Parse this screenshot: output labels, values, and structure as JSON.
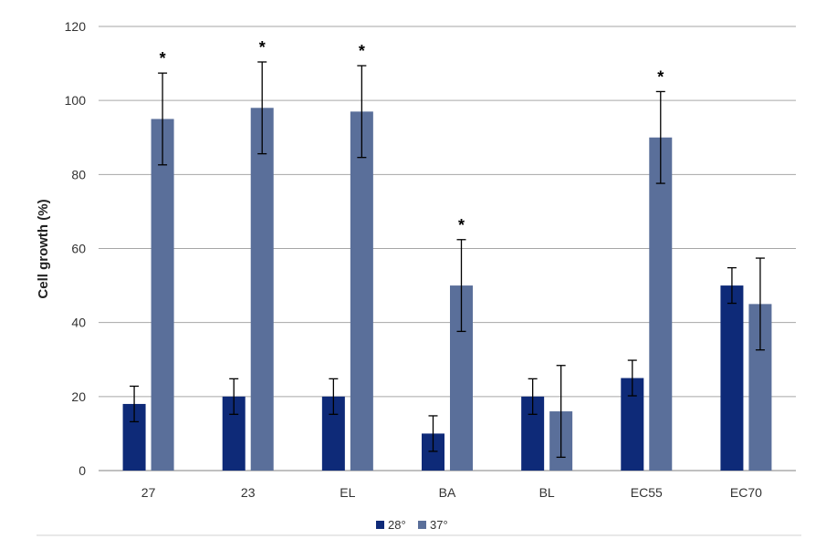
{
  "chart_data": {
    "type": "bar",
    "title": "",
    "xlabel": "",
    "ylabel": "Cell growth (%)",
    "ylim": [
      0,
      120
    ],
    "yticks": [
      0,
      20,
      40,
      60,
      80,
      100,
      120
    ],
    "grid": true,
    "legend_position": "bottom",
    "categories": [
      "27",
      "23",
      "EL",
      "BA",
      "BL",
      "EC55",
      "EC70"
    ],
    "series": [
      {
        "name": "28°",
        "color": "#0e2a78",
        "values": [
          18,
          20,
          20,
          10,
          20,
          25,
          50
        ],
        "errors": [
          4.8,
          4.8,
          4.8,
          4.8,
          4.8,
          4.8,
          4.8
        ]
      },
      {
        "name": "37°",
        "color": "#5a6f9a",
        "values": [
          95,
          98,
          97,
          50,
          16,
          90,
          45
        ],
        "errors": [
          12.4,
          12.4,
          12.4,
          12.4,
          12.4,
          12.4,
          12.4
        ]
      }
    ],
    "annotations": [
      {
        "text": "*",
        "category": "27",
        "series": "37°"
      },
      {
        "text": "*",
        "category": "23",
        "series": "37°"
      },
      {
        "text": "*",
        "category": "EL",
        "series": "37°"
      },
      {
        "text": "*",
        "category": "BA",
        "series": "37°"
      },
      {
        "text": "*",
        "category": "EC55",
        "series": "37°"
      }
    ]
  }
}
